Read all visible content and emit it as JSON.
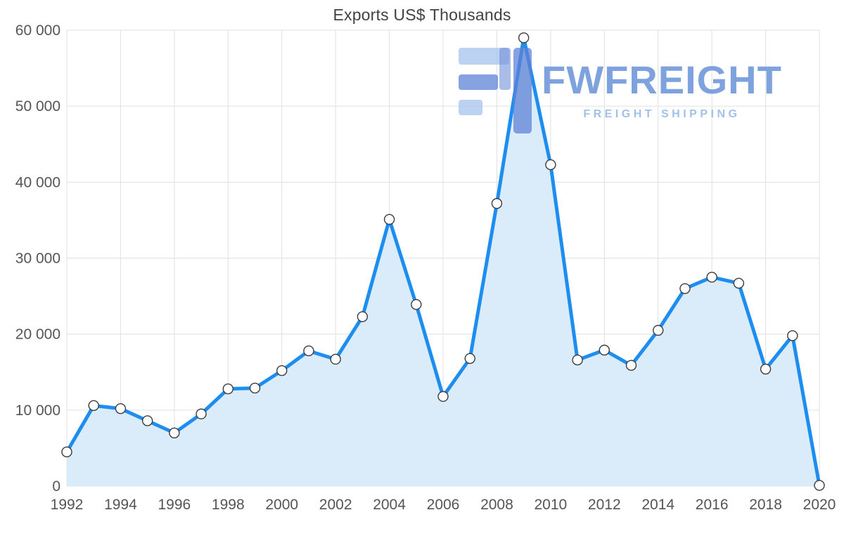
{
  "chart_data": {
    "type": "area",
    "title": "Exports US$ Thousands",
    "xlabel": "",
    "ylabel": "",
    "x": [
      1992,
      1993,
      1994,
      1995,
      1996,
      1997,
      1998,
      1999,
      2000,
      2001,
      2002,
      2003,
      2004,
      2005,
      2006,
      2007,
      2008,
      2009,
      2010,
      2011,
      2012,
      2013,
      2014,
      2015,
      2016,
      2017,
      2018,
      2019,
      2020
    ],
    "values": [
      4500,
      10600,
      10200,
      8600,
      7000,
      9500,
      12800,
      12900,
      15200,
      17800,
      16700,
      22300,
      35100,
      23900,
      11800,
      16800,
      37200,
      59000,
      42300,
      16600,
      17900,
      15900,
      20500,
      26000,
      27500,
      26700,
      15400,
      19800,
      100
    ],
    "x_ticks": [
      1992,
      1994,
      1996,
      1998,
      2000,
      2002,
      2004,
      2006,
      2008,
      2010,
      2012,
      2014,
      2016,
      2018,
      2020
    ],
    "x_tick_labels": [
      "1992",
      "1994",
      "1996",
      "1998",
      "2000",
      "2002",
      "2004",
      "2006",
      "2008",
      "2010",
      "2012",
      "2014",
      "2016",
      "2018",
      "2020"
    ],
    "y_ticks": [
      0,
      10000,
      20000,
      30000,
      40000,
      50000,
      60000
    ],
    "y_tick_labels": [
      "0",
      "10 000",
      "20 000",
      "30 000",
      "40 000",
      "50 000",
      "60 000"
    ],
    "xlim": [
      1992,
      2020
    ],
    "ylim": [
      0,
      60000
    ],
    "grid": true,
    "legend": "none",
    "line_color": "#1e8df0",
    "area_color": "#daecfa",
    "marker_fill": "#ffffff",
    "marker_stroke": "#3c3c3c",
    "grid_color": "#e0e0e0"
  },
  "watermark": {
    "brand": "FWFREIGHT",
    "tagline": "FREIGHT SHIPPING",
    "logo_color_dark": "#5f82d6",
    "logo_color_light": "#a9c5ef"
  }
}
